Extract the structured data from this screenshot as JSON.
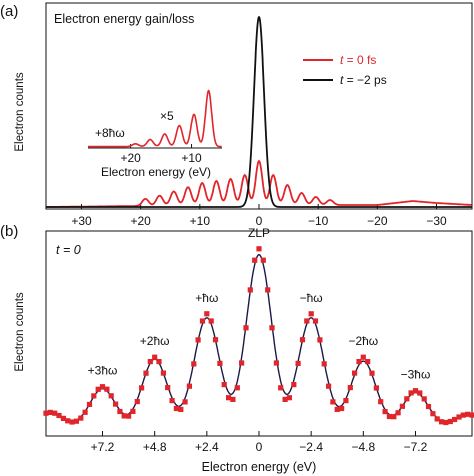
{
  "figure": {
    "panel_a_label": "(a)",
    "panel_b_label": "(b)"
  },
  "colors": {
    "red": "#e0262b",
    "black": "#111111",
    "navy": "#1a1a4a"
  },
  "chart_data": [
    {
      "panel": "a",
      "type": "line",
      "title": "Electron energy gain/loss",
      "xlabel": "",
      "ylabel": "Electron counts",
      "x_reversed": true,
      "xlim": [
        36,
        -36
      ],
      "xticks": [
        30,
        20,
        10,
        0,
        -10,
        -20,
        -30
      ],
      "xtick_labels": [
        "+30",
        "+20",
        "+10",
        "0",
        "−10",
        "−20",
        "−30"
      ],
      "ylim": [
        0,
        1.0
      ],
      "legend": {
        "placement": "top-right"
      },
      "series": [
        {
          "name": "t = 0 fs",
          "name_parts": {
            "t": "t",
            "eq": " =  0 fs"
          },
          "color": "#e0262b",
          "model": "comb",
          "peak_spacing_eV": 2.4,
          "peak_width_eV": 0.55,
          "peak_heights": [
            {
              "x": 0,
              "y": 0.22
            },
            {
              "x": 2.4,
              "y": 0.15
            },
            {
              "x": -2.4,
              "y": 0.15
            },
            {
              "x": 4.8,
              "y": 0.13
            },
            {
              "x": -4.8,
              "y": 0.1
            },
            {
              "x": 7.2,
              "y": 0.12
            },
            {
              "x": -7.2,
              "y": 0.06
            },
            {
              "x": 9.6,
              "y": 0.11
            },
            {
              "x": -9.6,
              "y": 0.04
            },
            {
              "x": 12.0,
              "y": 0.09
            },
            {
              "x": -12.0,
              "y": 0.025
            },
            {
              "x": 14.4,
              "y": 0.07
            },
            {
              "x": 16.8,
              "y": 0.05
            },
            {
              "x": 19.2,
              "y": 0.035
            }
          ],
          "baseline": [
            {
              "x": 36,
              "y": 0.01
            },
            {
              "x": 20,
              "y": 0.015
            },
            {
              "x": 10,
              "y": 0.02
            },
            {
              "x": 0,
              "y": 0.02
            },
            {
              "x": -10,
              "y": 0.02
            },
            {
              "x": -20,
              "y": 0.02
            },
            {
              "x": -26,
              "y": 0.04
            },
            {
              "x": -30,
              "y": 0.03
            },
            {
              "x": -36,
              "y": 0.02
            }
          ]
        },
        {
          "name": "t = −2 ps",
          "name_parts": {
            "t": "t",
            "eq": " = −2 ps"
          },
          "color": "#111111",
          "model": "single-peak",
          "center_eV": 0,
          "peak_y": 0.96,
          "width_eV": 0.85,
          "baseline_y": 0.01
        }
      ],
      "inset": {
        "type": "line",
        "xlabel": "Electron energy (eV)",
        "x_reversed": true,
        "xlim": [
          27,
          5
        ],
        "xticks": [
          20,
          10
        ],
        "xtick_labels": [
          "+20",
          "+10"
        ],
        "annotations": [
          "+8ħω",
          "×5"
        ],
        "series": [
          {
            "color": "#e0262b",
            "peaks": [
              {
                "x": 19.2,
                "y": 0.04
              },
              {
                "x": 16.8,
                "y": 0.1
              },
              {
                "x": 14.4,
                "y": 0.18
              },
              {
                "x": 12.0,
                "y": 0.3
              },
              {
                "x": 9.6,
                "y": 0.46
              },
              {
                "x": 7.2,
                "y": 0.8
              }
            ],
            "peak_width_eV": 0.5,
            "baseline_y": 0.02
          }
        ]
      }
    },
    {
      "panel": "b",
      "type": "line",
      "annotation_t": "t = 0",
      "xlabel": "Electron energy (eV)",
      "ylabel": "Electron counts",
      "x_reversed": true,
      "xlim": [
        9.8,
        -9.8
      ],
      "xticks": [
        7.2,
        4.8,
        2.4,
        0,
        -2.4,
        -4.8,
        -7.2
      ],
      "xtick_labels": [
        "+7.2",
        "+4.8",
        "+2.4",
        "0",
        "−2.4",
        "−4.8",
        "−7.2"
      ],
      "ylim": [
        0,
        1.0
      ],
      "peak_labels": [
        {
          "x": 7.2,
          "text": "+3ħω"
        },
        {
          "x": 4.8,
          "text": "+2ħω"
        },
        {
          "x": 2.4,
          "text": "+ħω"
        },
        {
          "x": 0,
          "text": "ZLP"
        },
        {
          "x": -2.4,
          "text": "−ħω"
        },
        {
          "x": -4.8,
          "text": "−2ħω"
        },
        {
          "x": -7.2,
          "text": "−3ħω"
        }
      ],
      "series": [
        {
          "kind": "markers",
          "color": "#e0262b",
          "peak_width_eV": 0.55,
          "baseline_y": 0.05,
          "peaks": [
            {
              "x": 0,
              "y": 0.95
            },
            {
              "x": 2.4,
              "y": 0.62
            },
            {
              "x": -2.4,
              "y": 0.62
            },
            {
              "x": 4.8,
              "y": 0.4
            },
            {
              "x": -4.8,
              "y": 0.4
            },
            {
              "x": 7.2,
              "y": 0.25
            },
            {
              "x": -7.2,
              "y": 0.23
            },
            {
              "x": 9.6,
              "y": 0.12
            },
            {
              "x": -9.6,
              "y": 0.11
            }
          ],
          "marker_step_eV": 0.2
        },
        {
          "kind": "line",
          "color": "#1a1a4a",
          "peak_width_eV": 0.58,
          "baseline_y": 0.05,
          "peaks": [
            {
              "x": 0,
              "y": 0.92
            },
            {
              "x": 2.4,
              "y": 0.6
            },
            {
              "x": -2.4,
              "y": 0.6
            },
            {
              "x": 4.8,
              "y": 0.39
            },
            {
              "x": -4.8,
              "y": 0.38
            },
            {
              "x": 7.2,
              "y": 0.24
            },
            {
              "x": -7.2,
              "y": 0.22
            },
            {
              "x": 9.6,
              "y": 0.12
            },
            {
              "x": -9.6,
              "y": 0.11
            }
          ]
        }
      ]
    }
  ]
}
